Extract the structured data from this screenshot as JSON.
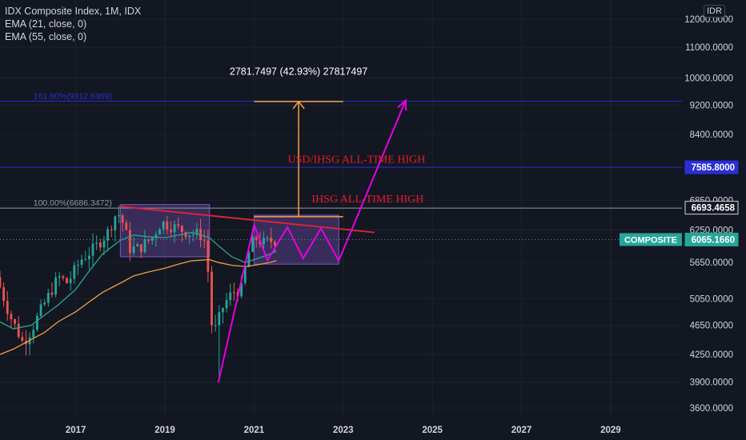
{
  "legend": {
    "title": "IDX Composite Index, 1M, IDX",
    "ema21": "EMA (21, close, 0)",
    "ema55": "EMA (55, close, 0)"
  },
  "currency": "IDR",
  "colors": {
    "background": "#131722",
    "up": "#26a69a",
    "down": "#ef5350",
    "ema21": "#26a69a",
    "ema55": "#f0a040",
    "blue_line": "#2a2fd6",
    "red_line": "#d9243a",
    "magenta": "#e600e6",
    "orange": "#f7a23a",
    "range_box": "#7e57c2"
  },
  "chart_data": {
    "type": "candlestick",
    "title": "IDX Composite Index, 1M, IDX",
    "y_scale": "log",
    "y_ticks": [
      "3600.0000",
      "3900.0000",
      "4250.0000",
      "4650.0000",
      "5050.0000",
      "5650.0000",
      "6250.0000",
      "6850.0000",
      "8400.0000",
      "9200.0000",
      "10000.0000",
      "11000.0000",
      "12000.0000"
    ],
    "y_tick_values": [
      3600,
      3900,
      4250,
      4650,
      5050,
      5650,
      6250,
      6850,
      8400,
      9200,
      10000,
      11000,
      12000
    ],
    "x_ticks": [
      "2017",
      "2019",
      "2021",
      "2023",
      "2025",
      "2027",
      "2029"
    ],
    "x_tick_values": [
      2017,
      2019,
      2021,
      2023,
      2025,
      2027,
      2029
    ],
    "ylim": [
      3450,
      13000
    ],
    "xlim": [
      2015.3,
      2030.6
    ],
    "price_labels": [
      {
        "label": "",
        "value_text": "7585.8000",
        "value": 7585.8,
        "color": "#2a2fd6"
      },
      {
        "label": "",
        "value_text": "6693.4658",
        "value": 6693.4658,
        "color": "#131722",
        "text_color": "#ffffff"
      },
      {
        "label": "COMPOSITE",
        "value_text": "6065.1660",
        "value": 6065.166,
        "color": "#26a69a"
      }
    ],
    "horizontal_lines": [
      {
        "name": "fib-161",
        "value": 9312.6369,
        "label": "161.80%(9312.6369)",
        "color": "#2a2fd6"
      },
      {
        "name": "usd-ihsg-ath",
        "value": 7585.8,
        "color": "#2a2fd6"
      },
      {
        "name": "fib-100",
        "value": 6686.3472,
        "label": "100.00%(6686.3472)",
        "color": "#9598a1"
      },
      {
        "name": "last-price",
        "value": 6065.166,
        "color": "#787b86",
        "dotted": true
      }
    ],
    "annotations": [
      {
        "name": "usd-ihsg-ath-label",
        "text": "USD/IHSG ALL-TIME HIGH",
        "x": 2023.3,
        "y": 7620
      },
      {
        "name": "ihsg-ath-label",
        "text": "IHSG ALL-TIME HIGH",
        "x": 2023.55,
        "y": 6740
      },
      {
        "name": "measure-label",
        "text": "2781.7497 (42.93%) 27817497",
        "x": 2022.0,
        "y": 10000
      }
    ],
    "range_boxes": [
      {
        "x": [
          2018.0,
          2020.0
        ],
        "y": [
          5750,
          6760
        ]
      },
      {
        "x": [
          2021.0,
          2022.9
        ],
        "y": [
          5620,
          6540
        ]
      }
    ],
    "trendline": {
      "x": [
        2018.0,
        2023.7
      ],
      "y": [
        6720,
        6200
      ]
    },
    "measure": {
      "x": [
        2021.0,
        2023.0
      ],
      "y_base": 6510,
      "y_top": 9300,
      "x_arrow": 2022.0
    },
    "magenta_path": {
      "x": [
        2021.0,
        2021.3,
        2021.75,
        2022.1,
        2022.5,
        2022.9
      ],
      "y": [
        6350,
        5690,
        6300,
        5720,
        6280,
        5680
      ]
    },
    "magenta_arrows": [
      {
        "x": [
          2020.2,
          2021.0
        ],
        "y": [
          3900,
          6350
        ]
      },
      {
        "x": [
          2022.9,
          2024.4
        ],
        "y": [
          5680,
          9330
        ]
      }
    ],
    "ema21": {
      "x": [
        2015.3,
        2015.6,
        2016.0,
        2016.3,
        2016.6,
        2017.0,
        2017.3,
        2017.6,
        2018.0,
        2018.3,
        2018.6,
        2019.0,
        2019.3,
        2019.6,
        2020.0,
        2020.2,
        2020.5,
        2020.8,
        2021.0,
        2021.3,
        2021.5
      ],
      "y": [
        4700,
        4600,
        4650,
        4800,
        4950,
        5200,
        5500,
        5800,
        6050,
        6150,
        6120,
        6100,
        6150,
        6200,
        6100,
        5950,
        5750,
        5650,
        5700,
        5780,
        5850
      ]
    },
    "ema55": {
      "x": [
        2015.3,
        2015.6,
        2016.0,
        2016.3,
        2016.6,
        2017.0,
        2017.3,
        2017.6,
        2018.0,
        2018.3,
        2018.6,
        2019.0,
        2019.3,
        2019.6,
        2020.0,
        2020.2,
        2020.5,
        2020.8,
        2021.0,
        2021.3,
        2021.5
      ],
      "y": [
        4250,
        4320,
        4450,
        4550,
        4700,
        4850,
        5000,
        5150,
        5300,
        5420,
        5480,
        5550,
        5620,
        5680,
        5700,
        5650,
        5600,
        5580,
        5600,
        5640,
        5680
      ]
    },
    "candles_anchor": {
      "x": [
        2015.3,
        2015.6,
        2015.9,
        2016.1,
        2016.4,
        2016.7,
        2016.9,
        2017.2,
        2017.5,
        2017.8,
        2018.0,
        2018.1,
        2018.3,
        2018.5,
        2018.8,
        2019.0,
        2019.3,
        2019.6,
        2019.9,
        2020.0,
        2020.15,
        2020.25,
        2020.4,
        2020.6,
        2020.8,
        2020.95,
        2021.1,
        2021.3,
        2021.5
      ],
      "y": [
        5400,
        4800,
        4400,
        4600,
        5000,
        5400,
        5300,
        5700,
        5900,
        6200,
        6600,
        6500,
        5900,
        5900,
        6100,
        6400,
        6300,
        6200,
        6150,
        6000,
        4500,
        4650,
        4950,
        5150,
        5200,
        5800,
        6100,
        6000,
        6050
      ]
    }
  }
}
